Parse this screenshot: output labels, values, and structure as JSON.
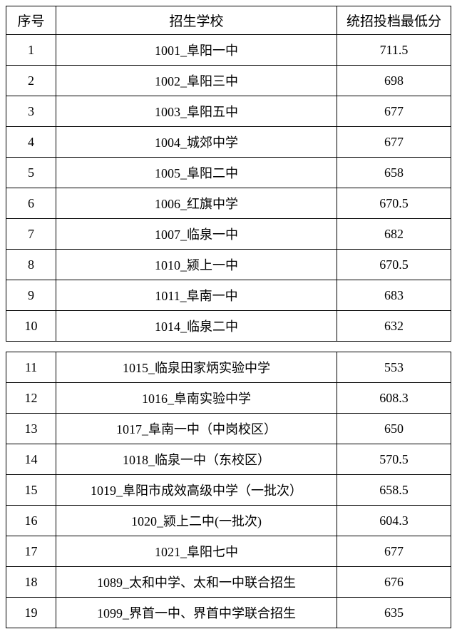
{
  "table": {
    "headers": {
      "index": "序号",
      "school": "招生学校",
      "score": "统招投档最低分"
    },
    "rows1": [
      {
        "index": "1",
        "school": "1001_阜阳一中",
        "score": "711.5"
      },
      {
        "index": "2",
        "school": "1002_阜阳三中",
        "score": "698"
      },
      {
        "index": "3",
        "school": "1003_阜阳五中",
        "score": "677"
      },
      {
        "index": "4",
        "school": "1004_城郊中学",
        "score": "677"
      },
      {
        "index": "5",
        "school": "1005_阜阳二中",
        "score": "658"
      },
      {
        "index": "6",
        "school": "1006_红旗中学",
        "score": "670.5"
      },
      {
        "index": "7",
        "school": "1007_临泉一中",
        "score": "682"
      },
      {
        "index": "8",
        "school": "1010_颍上一中",
        "score": "670.5"
      },
      {
        "index": "9",
        "school": "1011_阜南一中",
        "score": "683"
      },
      {
        "index": "10",
        "school": "1014_临泉二中",
        "score": "632"
      }
    ],
    "rows2": [
      {
        "index": "11",
        "school": "1015_临泉田家炳实验中学",
        "score": "553"
      },
      {
        "index": "12",
        "school": "1016_阜南实验中学",
        "score": "608.3"
      },
      {
        "index": "13",
        "school": "1017_阜南一中（中岗校区）",
        "score": "650"
      },
      {
        "index": "14",
        "school": "1018_临泉一中（东校区）",
        "score": "570.5"
      },
      {
        "index": "15",
        "school": "1019_阜阳市成效高级中学（一批次）",
        "score": "658.5"
      },
      {
        "index": "16",
        "school": "1020_颍上二中(一批次)",
        "score": "604.3"
      },
      {
        "index": "17",
        "school": "1021_阜阳七中",
        "score": "677"
      },
      {
        "index": "18",
        "school": "1089_太和中学、太和一中联合招生",
        "score": "676"
      },
      {
        "index": "19",
        "school": "1099_界首一中、界首中学联合招生",
        "score": "635"
      }
    ],
    "styling": {
      "border_color": "#000000",
      "background_color": "#ffffff",
      "text_color": "#000000",
      "header_fontsize": 19,
      "cell_fontsize": 18,
      "col_widths": {
        "index": 70,
        "score": 160
      }
    }
  }
}
